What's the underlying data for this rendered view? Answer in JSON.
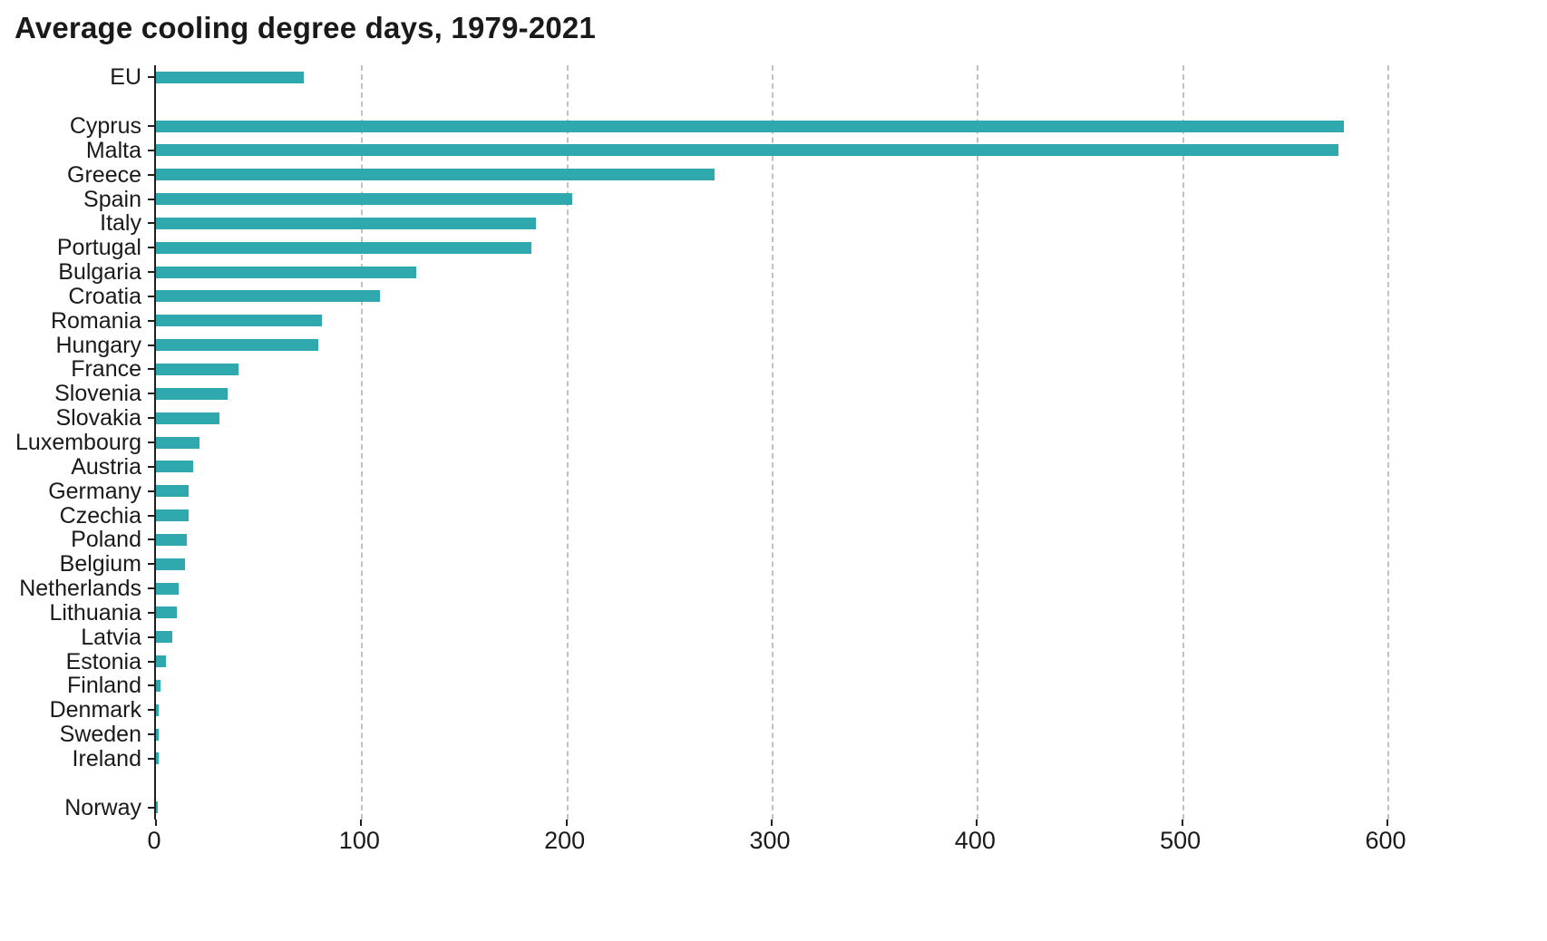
{
  "title": "Average cooling degree days, 1979-2021",
  "chart_data": {
    "type": "bar",
    "orientation": "horizontal",
    "title": "Average cooling degree days, 1979-2021",
    "xlabel": "",
    "ylabel": "",
    "xlim": [
      0,
      600
    ],
    "x_ticks": [
      0,
      100,
      200,
      300,
      400,
      500,
      600
    ],
    "grid": "vertical dashed",
    "legend": "none",
    "bar_color": "#2fa9ad",
    "categories": [
      "EU",
      "Cyprus",
      "Malta",
      "Greece",
      "Spain",
      "Italy",
      "Portugal",
      "Bulgaria",
      "Croatia",
      "Romania",
      "Hungary",
      "France",
      "Slovenia",
      "Slovakia",
      "Luxembourg",
      "Austria",
      "Germany",
      "Czechia",
      "Poland",
      "Belgium",
      "Netherlands",
      "Lithuania",
      "Latvia",
      "Estonia",
      "Finland",
      "Denmark",
      "Sweden",
      "Ireland",
      "Norway"
    ],
    "values": [
      72,
      579,
      576,
      272,
      203,
      185,
      183,
      127,
      109,
      81,
      79,
      40,
      35,
      31,
      21,
      18,
      16,
      16,
      15,
      14,
      11,
      10,
      8,
      5,
      2,
      1.5,
      1.5,
      1.5,
      1
    ],
    "separators_after": [
      "EU",
      "Ireland"
    ]
  }
}
